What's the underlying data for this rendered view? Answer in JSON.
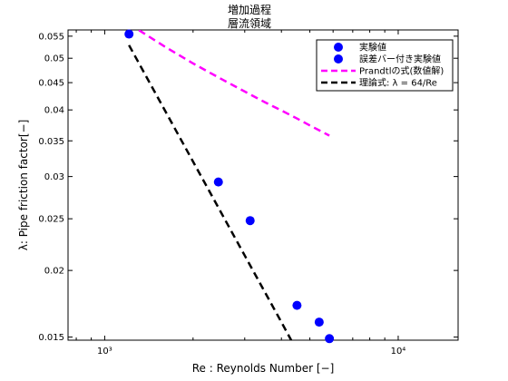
{
  "chart_data": {
    "type": "scatter",
    "title": "増加過程",
    "subtitle": "層流領域",
    "xlabel": "Re : Reynolds Number [−]",
    "ylabel": "λ: Pipe friction factor[−]",
    "x_scale": "log",
    "y_scale": "log",
    "xlim": [
      750,
      16000
    ],
    "ylim": [
      0.0148,
      0.0565
    ],
    "x_ticks": [
      1000,
      10000
    ],
    "x_tick_labels": [
      "10³",
      "10⁴"
    ],
    "y_ticks": [
      0.015,
      0.02,
      0.025,
      0.03,
      0.035,
      0.04,
      0.045,
      0.05,
      0.055
    ],
    "y_tick_labels": [
      "0.015",
      "0.02",
      "0.025",
      "0.03",
      "0.035",
      "0.04",
      "0.045",
      "0.05",
      "0.055"
    ],
    "grid": false,
    "legend_position": "top-right",
    "series": [
      {
        "name": "実験値",
        "kind": "scatter",
        "color": "#0000ff",
        "x": [
          1210,
          2440,
          3130,
          4520,
          5380,
          5830
        ],
        "y": [
          0.0555,
          0.0293,
          0.0248,
          0.0172,
          0.016,
          0.0149
        ]
      },
      {
        "name": "誤差バー付き実験値",
        "kind": "scatter",
        "color": "#0000ff",
        "x": [],
        "y": []
      },
      {
        "name": "Prandtlの式(数値解)",
        "kind": "line",
        "style": "dashed",
        "color": "#ff00ff",
        "x": [
          1210,
          1600,
          2000,
          2500,
          3000,
          3500,
          4000,
          4500,
          5000,
          5830
        ],
        "y": [
          0.058,
          0.0526,
          0.0489,
          0.0457,
          0.0433,
          0.0414,
          0.0399,
          0.0386,
          0.0374,
          0.0358
        ]
      },
      {
        "name": "理論式: λ = 64/Re",
        "kind": "line",
        "style": "dashed",
        "color": "#000000",
        "x": [
          1210,
          2000,
          3000,
          4000,
          4320
        ],
        "y": [
          0.0529,
          0.032,
          0.02133,
          0.016,
          0.0148
        ]
      }
    ]
  }
}
